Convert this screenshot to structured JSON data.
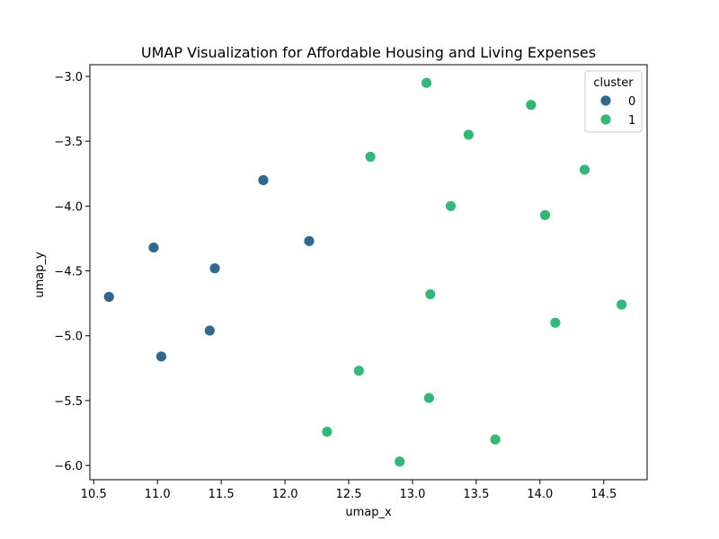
{
  "chart_data": {
    "type": "scatter",
    "title": "UMAP Visualization for Affordable Housing and Living Expenses",
    "xlabel": "umap_x",
    "ylabel": "umap_y",
    "xlim": [
      10.47,
      14.84
    ],
    "ylim": [
      -6.11,
      -2.91
    ],
    "xticks": [
      "10.5",
      "11.0",
      "11.5",
      "12.0",
      "12.5",
      "13.0",
      "13.5",
      "14.0",
      "14.5"
    ],
    "xtick_values": [
      10.5,
      11.0,
      11.5,
      12.0,
      12.5,
      13.0,
      13.5,
      14.0,
      14.5
    ],
    "yticks": [
      "−3.0",
      "−3.5",
      "−4.0",
      "−4.5",
      "−5.0",
      "−5.5",
      "−6.0"
    ],
    "ytick_values": [
      -3.0,
      -3.5,
      -4.0,
      -4.5,
      -5.0,
      -5.5,
      -6.0
    ],
    "grid": false,
    "legend": {
      "title": "cluster",
      "placement": "top-right",
      "entries": [
        {
          "label": "0",
          "color": "#31688e"
        },
        {
          "label": "1",
          "color": "#35b779"
        }
      ]
    },
    "series": [
      {
        "name": "0",
        "color": "#31688e",
        "points": [
          {
            "x": 10.62,
            "y": -4.7
          },
          {
            "x": 10.97,
            "y": -4.32
          },
          {
            "x": 11.03,
            "y": -5.16
          },
          {
            "x": 11.41,
            "y": -4.96
          },
          {
            "x": 11.45,
            "y": -4.48
          },
          {
            "x": 11.83,
            "y": -3.8
          },
          {
            "x": 12.19,
            "y": -4.27
          }
        ]
      },
      {
        "name": "1",
        "color": "#35b779",
        "points": [
          {
            "x": 12.33,
            "y": -5.74
          },
          {
            "x": 12.58,
            "y": -5.27
          },
          {
            "x": 12.67,
            "y": -3.62
          },
          {
            "x": 12.9,
            "y": -5.97
          },
          {
            "x": 13.11,
            "y": -3.05
          },
          {
            "x": 13.13,
            "y": -5.48
          },
          {
            "x": 13.14,
            "y": -4.68
          },
          {
            "x": 13.3,
            "y": -4.0
          },
          {
            "x": 13.44,
            "y": -3.45
          },
          {
            "x": 13.65,
            "y": -5.8
          },
          {
            "x": 13.93,
            "y": -3.22
          },
          {
            "x": 14.04,
            "y": -4.07
          },
          {
            "x": 14.12,
            "y": -4.9
          },
          {
            "x": 14.35,
            "y": -3.72
          },
          {
            "x": 14.64,
            "y": -4.76
          }
        ]
      }
    ]
  }
}
